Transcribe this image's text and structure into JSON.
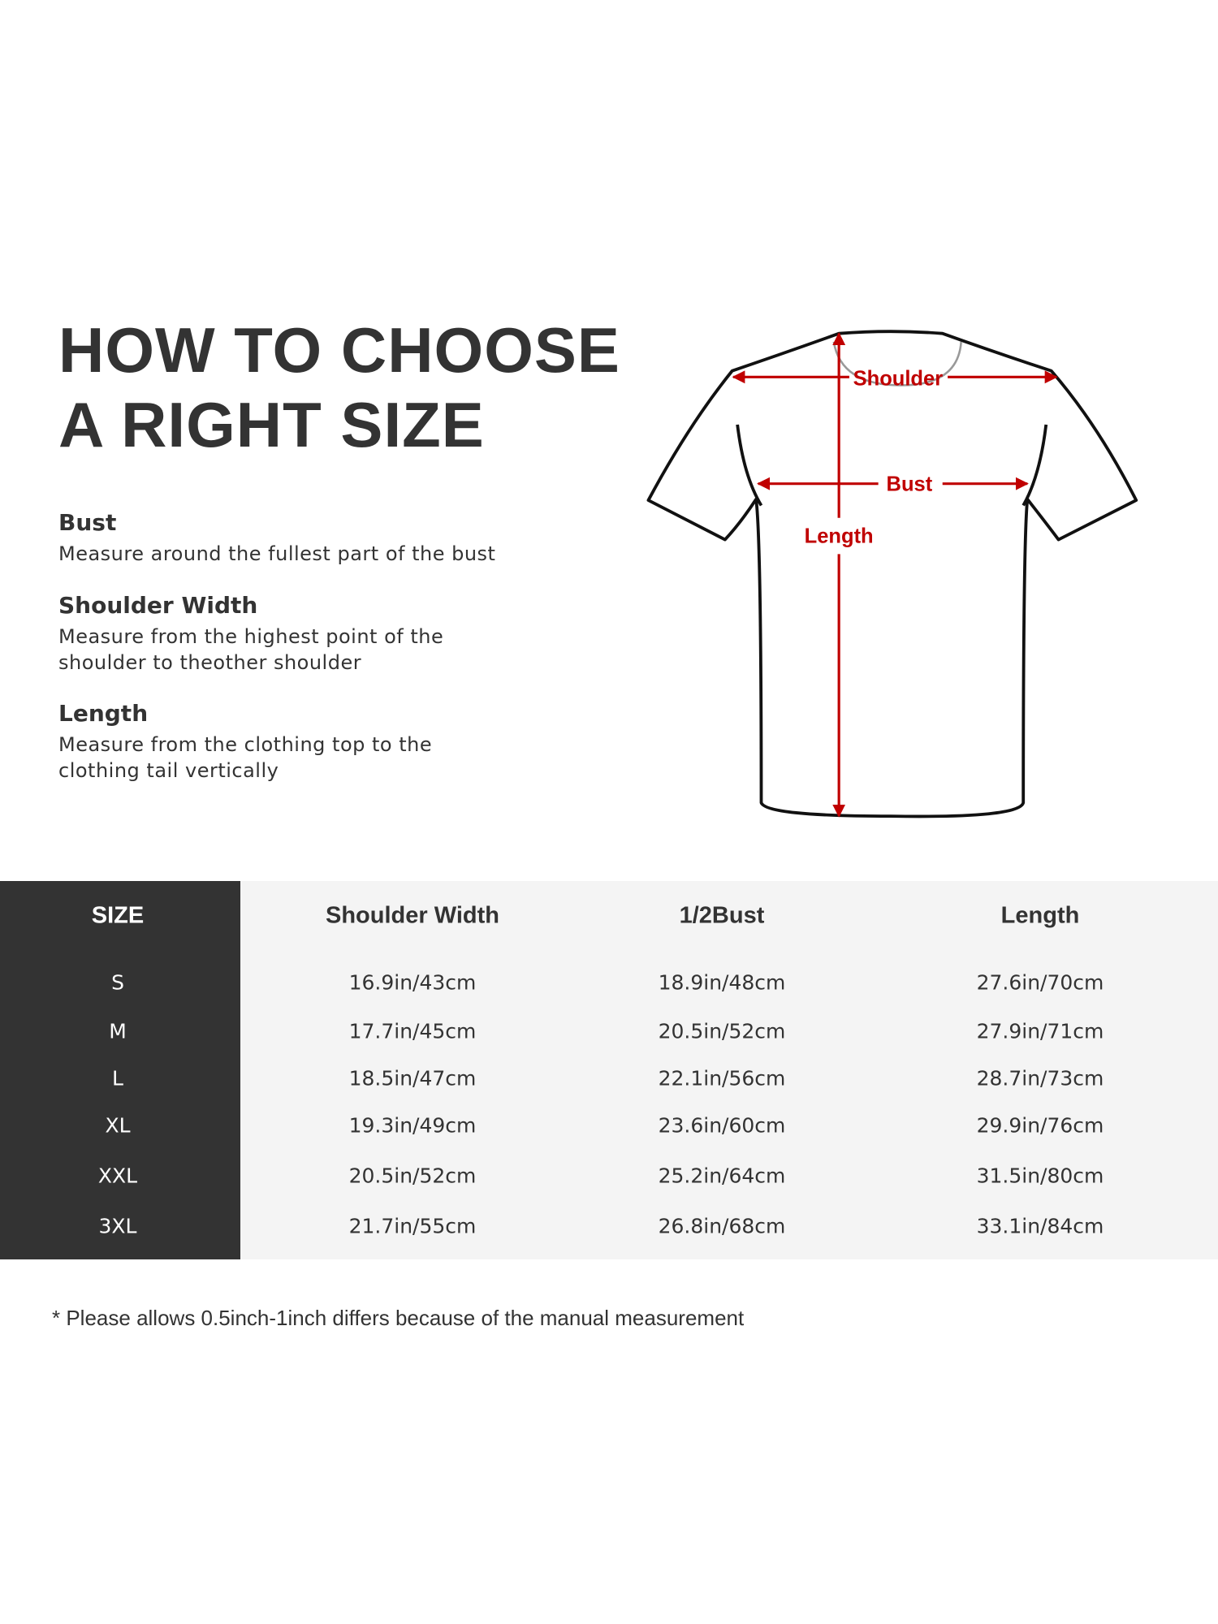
{
  "title": {
    "line1": "HOW TO CHOOSE",
    "line2": "A RIGHT SIZE"
  },
  "guide": [
    {
      "heading": "Bust",
      "lines": [
        "Measure around the fullest part of the bust"
      ]
    },
    {
      "heading": "Shoulder Width",
      "lines": [
        "Measure from the highest point of the",
        "shoulder to theother shoulder"
      ]
    },
    {
      "heading": "Length",
      "lines": [
        "Measure from the clothing top to the",
        "clothing tail vertically"
      ]
    }
  ],
  "diagram": {
    "shoulder_label": "Shoulder",
    "bust_label": "Bust",
    "length_label": "Length",
    "accent_color": "#c00000"
  },
  "table": {
    "headers": [
      "SIZE",
      "Shoulder Width",
      "1/2Bust",
      "Length"
    ],
    "rows": [
      [
        "S",
        "16.9in/43cm",
        "18.9in/48cm",
        "27.6in/70cm"
      ],
      [
        "M",
        "17.7in/45cm",
        "20.5in/52cm",
        "27.9in/71cm"
      ],
      [
        "L",
        "18.5in/47cm",
        "22.1in/56cm",
        "28.7in/73cm"
      ],
      [
        "XL",
        "19.3in/49cm",
        "23.6in/60cm",
        "29.9in/76cm"
      ],
      [
        "XXL",
        "20.5in/52cm",
        "25.2in/64cm",
        "31.5in/80cm"
      ],
      [
        "3XL",
        "21.7in/55cm",
        "26.8in/68cm",
        "33.1in/84cm"
      ]
    ]
  },
  "footnote": "* Please allows 0.5inch-1inch differs because of the  manual measurement"
}
